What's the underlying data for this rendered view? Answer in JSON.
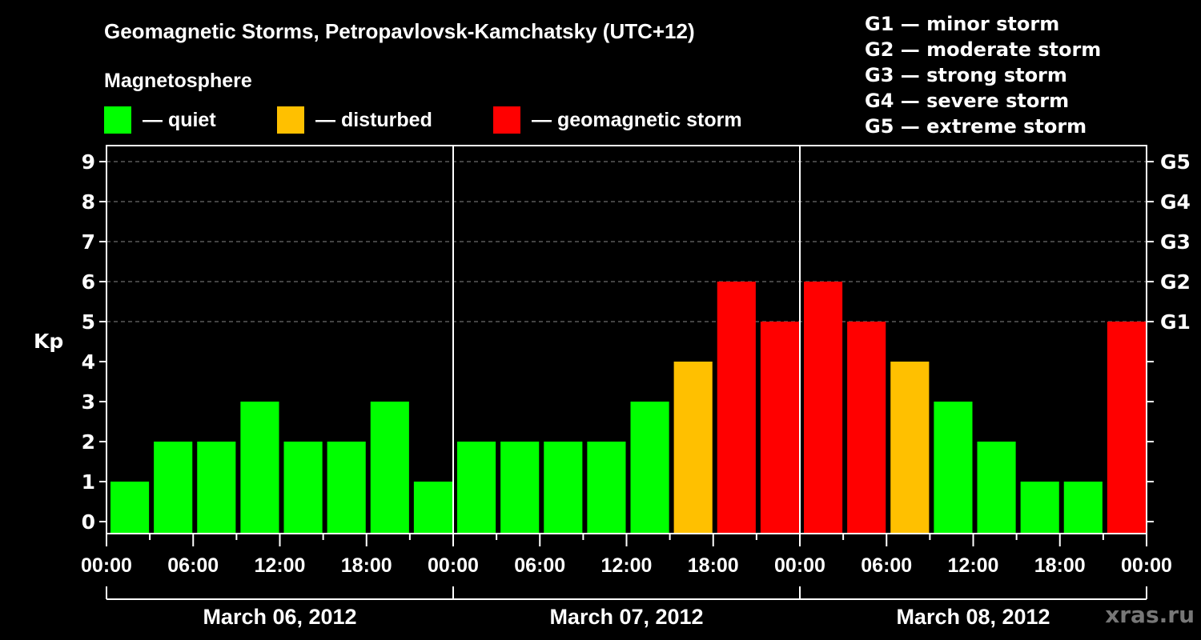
{
  "header": {
    "title": "Geomagnetic Storms, Petropavlovsk-Kamchatsky (UTC+12)",
    "magnetosphere_label": "Magnetosphere"
  },
  "legend": {
    "items": [
      {
        "label": "— quiet",
        "color": "#00ff00"
      },
      {
        "label": "— disturbed",
        "color": "#ffc000"
      },
      {
        "label": "— geomagnetic storm",
        "color": "#ff0000"
      }
    ]
  },
  "g_scale": [
    "G1 — minor storm",
    "G2 — moderate storm",
    "G3 — strong storm",
    "G4 — severe storm",
    "G5 — extreme storm"
  ],
  "watermark": "xras.ru",
  "chart_data": {
    "type": "bar",
    "title": "Geomagnetic Storms, Petropavlovsk-Kamchatsky (UTC+12)",
    "xlabel": "",
    "ylabel": "Kp",
    "ylim": [
      0,
      9
    ],
    "yticks": [
      0,
      1,
      2,
      3,
      4,
      5,
      6,
      7,
      8,
      9
    ],
    "y2_ticks": [
      {
        "value": 5,
        "label": "G1"
      },
      {
        "value": 6,
        "label": "G2"
      },
      {
        "value": 7,
        "label": "G3"
      },
      {
        "value": 8,
        "label": "G4"
      },
      {
        "value": 9,
        "label": "G5"
      }
    ],
    "grid": "dashed horizontal at Kp 5-9",
    "x_tick_labels": [
      "00:00",
      "06:00",
      "12:00",
      "18:00",
      "00:00",
      "06:00",
      "12:00",
      "18:00",
      "00:00",
      "06:00",
      "12:00",
      "18:00",
      "00:00"
    ],
    "days": [
      "March 06, 2012",
      "March 07, 2012",
      "March 08, 2012"
    ],
    "categories": [
      "Mar06 00-03",
      "Mar06 03-06",
      "Mar06 06-09",
      "Mar06 09-12",
      "Mar06 12-15",
      "Mar06 15-18",
      "Mar06 18-21",
      "Mar06 21-24",
      "Mar07 00-03",
      "Mar07 03-06",
      "Mar07 06-09",
      "Mar07 09-12",
      "Mar07 12-15",
      "Mar07 15-18",
      "Mar07 18-21",
      "Mar07 21-24",
      "Mar08 00-03",
      "Mar08 03-06",
      "Mar08 06-09",
      "Mar08 09-12",
      "Mar08 12-15",
      "Mar08 15-18",
      "Mar08 18-21",
      "Mar08 21-24"
    ],
    "values": [
      1,
      2,
      2,
      3,
      2,
      2,
      3,
      1,
      2,
      2,
      2,
      2,
      3,
      4,
      6,
      5,
      6,
      5,
      4,
      3,
      2,
      1,
      1,
      5
    ],
    "colors": {
      "quiet": "#00ff00",
      "disturbed": "#ffc000",
      "storm": "#ff0000"
    },
    "color_rule": "Kp<=3 quiet, Kp=4 disturbed, Kp>=5 storm"
  }
}
